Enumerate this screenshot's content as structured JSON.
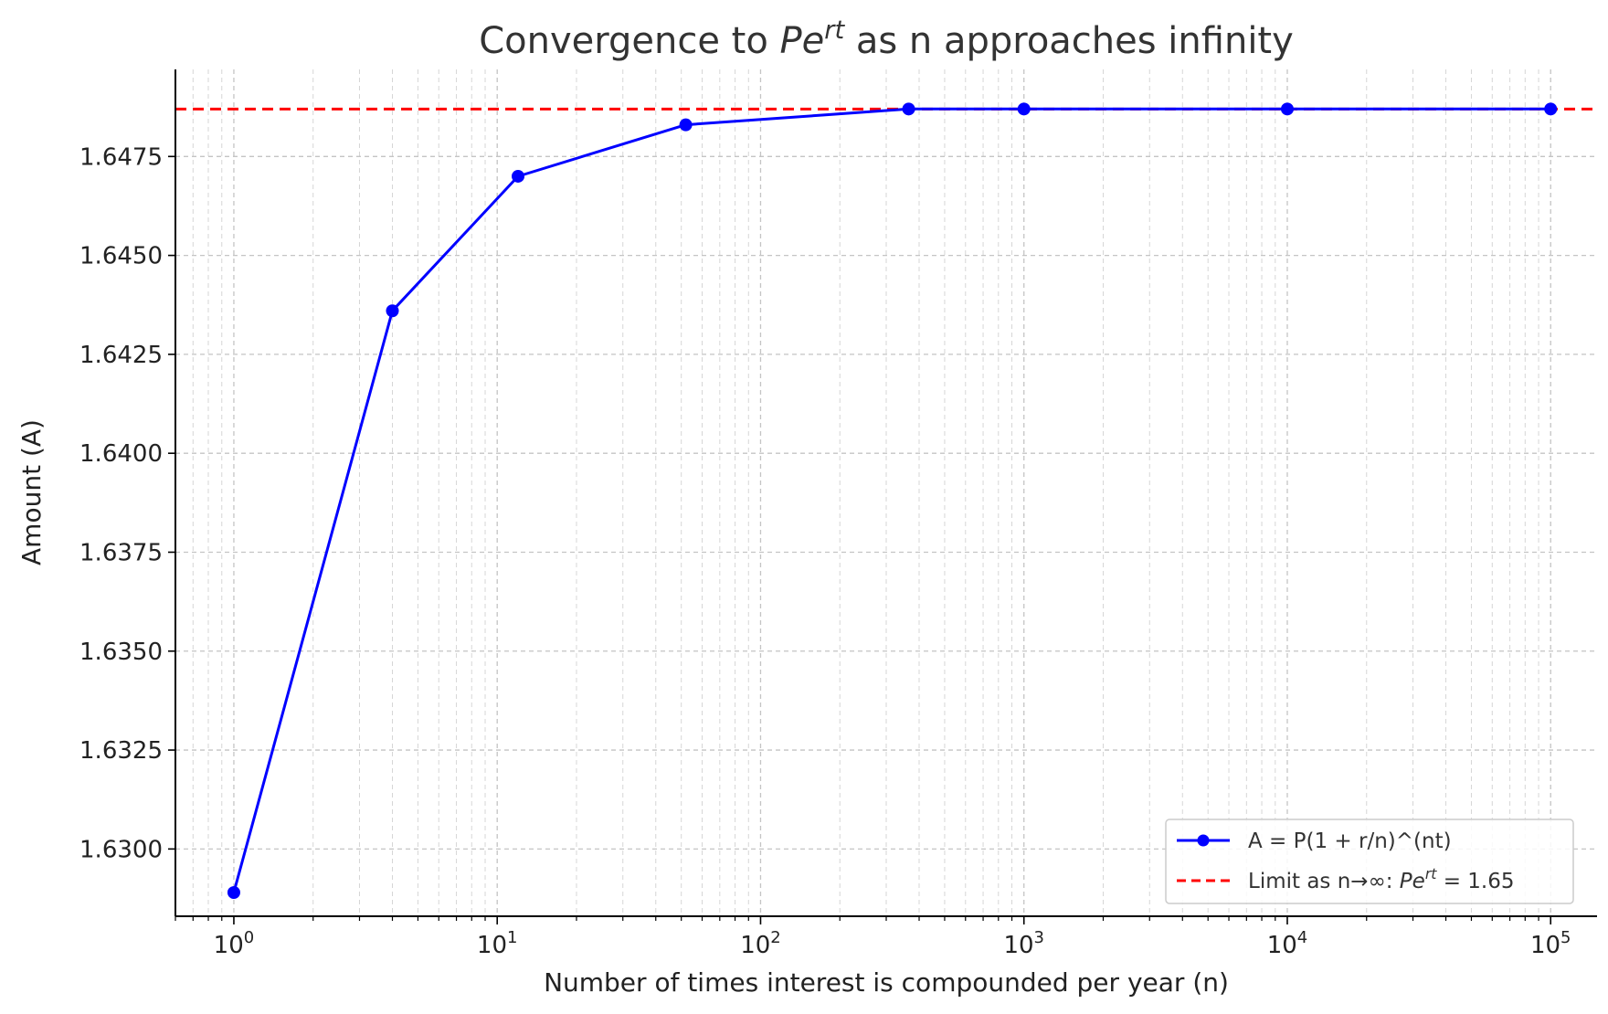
{
  "chart_data": {
    "type": "line",
    "title": {
      "before": "Convergence to ",
      "math_base": "Pe",
      "math_sup": "rt",
      "after": " as n approaches infinity"
    },
    "xlabel": "Number of times interest is compounded per year (n)",
    "ylabel": "Amount (A)",
    "x_scale": "log",
    "xlim": [
      0.6,
      150000
    ],
    "ylim": [
      1.6283,
      1.6497
    ],
    "x_ticks": [
      {
        "value": 1,
        "base": "10",
        "exp": "0"
      },
      {
        "value": 10,
        "base": "10",
        "exp": "1"
      },
      {
        "value": 100,
        "base": "10",
        "exp": "2"
      },
      {
        "value": 1000,
        "base": "10",
        "exp": "3"
      },
      {
        "value": 10000,
        "base": "10",
        "exp": "4"
      },
      {
        "value": 100000,
        "base": "10",
        "exp": "5"
      }
    ],
    "y_ticks": [
      {
        "value": 1.63,
        "label": "1.6300"
      },
      {
        "value": 1.6325,
        "label": "1.6325"
      },
      {
        "value": 1.635,
        "label": "1.6350"
      },
      {
        "value": 1.6375,
        "label": "1.6375"
      },
      {
        "value": 1.64,
        "label": "1.6400"
      },
      {
        "value": 1.6425,
        "label": "1.6425"
      },
      {
        "value": 1.645,
        "label": "1.6450"
      },
      {
        "value": 1.6475,
        "label": "1.6475"
      }
    ],
    "grid": true,
    "series": [
      {
        "name": "A = P(1 + r/n)^(nt)",
        "color": "#0000ff",
        "marker": "circle",
        "x": [
          1,
          4,
          12,
          52,
          365,
          1000,
          10000,
          100000
        ],
        "y": [
          1.6289,
          1.6436,
          1.647,
          1.6483,
          1.6487,
          1.6487,
          1.6487,
          1.6487
        ]
      }
    ],
    "reference_line": {
      "value": 1.6487,
      "color": "#ff0000",
      "style": "dashed",
      "legend_before": "Limit as n→∞: ",
      "legend_math_base": "Pe",
      "legend_math_sup": "rt",
      "legend_after": " = 1.65"
    },
    "legend_position": "lower-right"
  }
}
